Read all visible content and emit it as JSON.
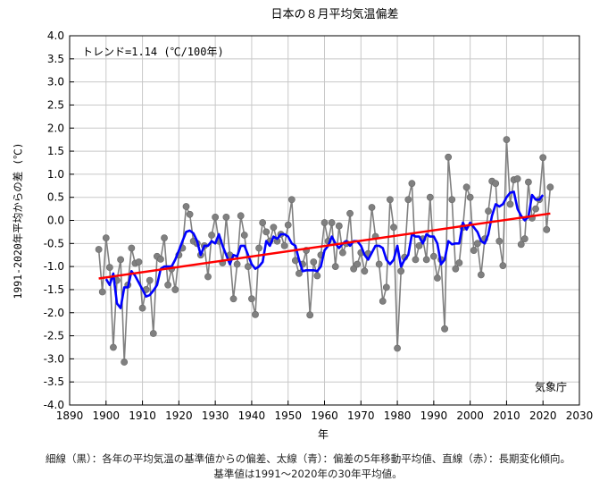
{
  "chart_data": {
    "type": "line",
    "title": "日本の８月平均気温偏差",
    "xlabel": "年",
    "ylabel": "1991-2020年平均からの差 (℃)",
    "xlim": [
      1890,
      2030
    ],
    "ylim": [
      -4.0,
      4.0
    ],
    "x_ticks": [
      "1890",
      "1900",
      "1910",
      "1920",
      "1930",
      "1940",
      "1950",
      "1960",
      "1970",
      "1980",
      "1990",
      "2000",
      "2010",
      "2020",
      "2030"
    ],
    "y_ticks": [
      "4.0",
      "3.5",
      "3.0",
      "2.5",
      "2.0",
      "1.5",
      "1.0",
      "0.5",
      "0.0",
      "-0.5",
      "-1.0",
      "-1.5",
      "-2.0",
      "-2.5",
      "-3.0",
      "-3.5",
      "-4.0"
    ],
    "grid": true,
    "trend_label": "トレンド=1.14 (℃/100年)",
    "source_label": "気象庁",
    "series": [
      {
        "color": "#808080",
        "x": [
          1898,
          1899,
          1900,
          1901,
          1902,
          1903,
          1904,
          1905,
          1906,
          1907,
          1908,
          1909,
          1910,
          1911,
          1912,
          1913,
          1914,
          1915,
          1916,
          1917,
          1918,
          1919,
          1920,
          1921,
          1922,
          1923,
          1924,
          1925,
          1926,
          1927,
          1928,
          1929,
          1930,
          1931,
          1932,
          1933,
          1934,
          1935,
          1936,
          1937,
          1938,
          1939,
          1940,
          1941,
          1942,
          1943,
          1944,
          1945,
          1946,
          1947,
          1948,
          1949,
          1950,
          1951,
          1952,
          1953,
          1954,
          1955,
          1956,
          1957,
          1958,
          1959,
          1960,
          1961,
          1962,
          1963,
          1964,
          1965,
          1966,
          1967,
          1968,
          1969,
          1970,
          1971,
          1972,
          1973,
          1974,
          1975,
          1976,
          1977,
          1978,
          1979,
          1980,
          1981,
          1982,
          1983,
          1984,
          1985,
          1986,
          1987,
          1988,
          1989,
          1990,
          1991,
          1992,
          1993,
          1994,
          1995,
          1996,
          1997,
          1998,
          1999,
          2000,
          2001,
          2002,
          2003,
          2004,
          2005,
          2006,
          2007,
          2008,
          2009,
          2010,
          2011,
          2012,
          2013,
          2014,
          2015,
          2016,
          2017,
          2018,
          2019,
          2020,
          2021,
          2022
        ],
        "values": [
          -0.63,
          -1.55,
          -0.38,
          -1.02,
          -2.75,
          -1.3,
          -0.85,
          -3.07,
          -1.4,
          -0.6,
          -0.93,
          -0.9,
          -1.9,
          -1.5,
          -1.3,
          -2.45,
          -0.78,
          -0.84,
          -0.38,
          -1.4,
          -1.05,
          -1.5,
          -0.75,
          -0.6,
          0.3,
          0.13,
          -0.45,
          -0.5,
          -0.75,
          -0.55,
          -1.22,
          -0.32,
          0.07,
          -0.45,
          -0.92,
          0.07,
          -0.75,
          -1.7,
          -0.95,
          0.1,
          -0.32,
          -1.0,
          -1.7,
          -2.04,
          -0.6,
          -0.05,
          -0.25,
          -0.45,
          -0.15,
          -0.45,
          -0.3,
          -0.55,
          -0.1,
          0.45,
          -0.87,
          -1.15,
          -0.95,
          -0.65,
          -2.05,
          -0.9,
          -1.2,
          -0.75,
          -0.05,
          -0.45,
          -0.05,
          -1.0,
          -0.12,
          -0.7,
          -0.5,
          0.15,
          -1.05,
          -0.95,
          -0.7,
          -1.1,
          -0.72,
          0.28,
          -0.35,
          -0.95,
          -1.75,
          -1.45,
          0.45,
          -0.15,
          -2.77,
          -1.1,
          -0.8,
          0.45,
          0.8,
          -0.85,
          -0.55,
          -0.4,
          -0.85,
          0.5,
          -0.78,
          -1.25,
          -0.85,
          -2.35,
          1.37,
          0.45,
          -1.05,
          -0.92,
          -0.15,
          0.72,
          0.5,
          -0.65,
          -0.5,
          -1.18,
          -0.4,
          0.2,
          0.85,
          0.8,
          -0.45,
          -0.98,
          1.75,
          0.35,
          0.88,
          0.9,
          -0.52,
          -0.4,
          0.83,
          0.05,
          0.25,
          0.45,
          1.36,
          -0.2,
          0.72
        ]
      },
      {
        "color": "#0000ff",
        "x": [
          1900,
          1901,
          1902,
          1903,
          1904,
          1905,
          1906,
          1907,
          1908,
          1909,
          1910,
          1911,
          1912,
          1913,
          1914,
          1915,
          1916,
          1917,
          1918,
          1919,
          1920,
          1921,
          1922,
          1923,
          1924,
          1925,
          1926,
          1927,
          1928,
          1929,
          1930,
          1931,
          1932,
          1933,
          1934,
          1935,
          1936,
          1937,
          1938,
          1939,
          1940,
          1941,
          1942,
          1943,
          1944,
          1945,
          1946,
          1947,
          1948,
          1949,
          1950,
          1951,
          1952,
          1953,
          1954,
          1955,
          1956,
          1957,
          1958,
          1959,
          1960,
          1961,
          1962,
          1963,
          1964,
          1965,
          1966,
          1967,
          1968,
          1969,
          1970,
          1971,
          1972,
          1973,
          1974,
          1975,
          1976,
          1977,
          1978,
          1979,
          1980,
          1981,
          1982,
          1983,
          1984,
          1985,
          1986,
          1987,
          1988,
          1989,
          1990,
          1991,
          1992,
          1993,
          1994,
          1995,
          1996,
          1997,
          1998,
          1999,
          2000,
          2001,
          2002,
          2003,
          2004,
          2005,
          2006,
          2007,
          2008,
          2009,
          2010,
          2011,
          2012,
          2013,
          2014,
          2015,
          2016,
          2017,
          2018,
          2019,
          2020
        ],
        "values": [
          -1.27,
          -1.4,
          -1.15,
          -1.8,
          -1.9,
          -1.45,
          -1.45,
          -1.1,
          -1.2,
          -1.35,
          -1.5,
          -1.65,
          -1.62,
          -1.52,
          -1.4,
          -1.05,
          -1.0,
          -1.0,
          -1.0,
          -0.85,
          -0.65,
          -0.45,
          -0.25,
          -0.22,
          -0.28,
          -0.45,
          -0.75,
          -0.55,
          -0.55,
          -0.45,
          -0.5,
          -0.3,
          -0.55,
          -0.75,
          -0.95,
          -0.75,
          -0.78,
          -0.55,
          -0.55,
          -0.75,
          -0.95,
          -1.05,
          -1.0,
          -0.9,
          -0.45,
          -0.55,
          -0.35,
          -0.4,
          -0.3,
          -0.3,
          -0.35,
          -0.5,
          -0.55,
          -0.85,
          -1.1,
          -1.08,
          -1.08,
          -1.08,
          -1.1,
          -1.0,
          -0.65,
          -0.55,
          -0.35,
          -0.5,
          -0.6,
          -0.5,
          -0.45,
          -0.55,
          -0.45,
          -0.45,
          -0.55,
          -0.75,
          -0.85,
          -0.7,
          -0.55,
          -0.55,
          -0.6,
          -0.85,
          -0.95,
          -0.85,
          -0.55,
          -1.0,
          -0.85,
          -0.75,
          -0.3,
          -0.35,
          -0.35,
          -0.5,
          -0.3,
          -0.35,
          -0.35,
          -0.5,
          -0.95,
          -0.85,
          -0.45,
          -0.52,
          -0.5,
          -0.5,
          -0.05,
          -0.2,
          -0.05,
          -0.15,
          -0.25,
          -0.45,
          -0.5,
          -0.3,
          0.1,
          0.35,
          0.3,
          0.35,
          0.5,
          0.6,
          0.62,
          0.25,
          0.1,
          0.0,
          0.08,
          0.55,
          0.45,
          0.45,
          0.55
        ]
      },
      {
        "color": "#ff0000",
        "x": [
          1898,
          2022
        ],
        "values": [
          -1.26,
          0.15
        ]
      }
    ]
  },
  "caption": {
    "line1": "細線（黒）：各年の平均気温の基準値からの偏差、太線（青）：偏差の5年移動平均値、直線（赤）：長期変化傾向。",
    "line2": "基準値は1991～2020年の30年平均値。"
  }
}
